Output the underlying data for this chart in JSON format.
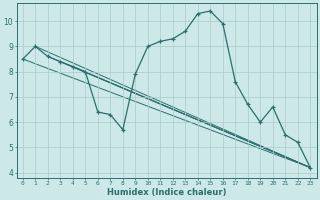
{
  "xlabel": "Humidex (Indice chaleur)",
  "background_color": "#cce8e8",
  "grid_color": "#aacccc",
  "line_color": "#2e6e6e",
  "xlim": [
    -0.5,
    23.5
  ],
  "ylim": [
    3.8,
    10.7
  ],
  "yticks": [
    4,
    5,
    6,
    7,
    8,
    9,
    10
  ],
  "xticks": [
    0,
    1,
    2,
    3,
    4,
    5,
    6,
    7,
    8,
    9,
    10,
    11,
    12,
    13,
    14,
    15,
    16,
    17,
    18,
    19,
    20,
    21,
    22,
    23
  ],
  "main_x": [
    0,
    1,
    2,
    3,
    4,
    5,
    6,
    7,
    8,
    9,
    10,
    11,
    12,
    13,
    14,
    15,
    16,
    17,
    18,
    19,
    20,
    21,
    22,
    23
  ],
  "main_y": [
    8.5,
    9.0,
    8.6,
    8.4,
    8.2,
    8.0,
    6.4,
    6.3,
    5.7,
    7.9,
    9.0,
    9.2,
    9.3,
    9.6,
    10.3,
    10.4,
    9.9,
    7.6,
    6.7,
    6.0,
    6.6,
    5.5,
    5.2,
    4.2
  ],
  "straight_lines": [
    {
      "x": [
        0,
        23
      ],
      "y": [
        8.5,
        4.2
      ]
    },
    {
      "x": [
        1,
        23
      ],
      "y": [
        9.0,
        4.2
      ]
    },
    {
      "x": [
        2,
        23
      ],
      "y": [
        8.6,
        4.2
      ]
    },
    {
      "x": [
        3,
        23
      ],
      "y": [
        8.4,
        4.2
      ]
    },
    {
      "x": [
        4,
        23
      ],
      "y": [
        8.2,
        4.2
      ]
    }
  ]
}
